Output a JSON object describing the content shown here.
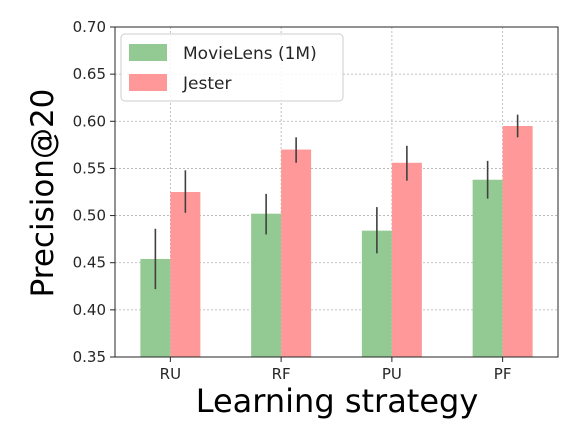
{
  "chart_data": {
    "type": "bar",
    "xlabel": "Learning strategy",
    "ylabel": "Precision@20",
    "categories": [
      "RU",
      "RF",
      "PU",
      "PF"
    ],
    "ylim": [
      0.35,
      0.7
    ],
    "yticks": [
      "0.35",
      "0.40",
      "0.45",
      "0.50",
      "0.55",
      "0.60",
      "0.65",
      "0.70"
    ],
    "grid": true,
    "legend_position": "top-left",
    "series": [
      {
        "name": "MovieLens (1M)",
        "color": "#93c993",
        "values": [
          0.454,
          0.502,
          0.484,
          0.538
        ],
        "err_low": [
          0.422,
          0.48,
          0.46,
          0.518
        ],
        "err_high": [
          0.486,
          0.523,
          0.509,
          0.558
        ]
      },
      {
        "name": "Jester",
        "color": "#ff9898",
        "values": [
          0.525,
          0.57,
          0.556,
          0.595
        ],
        "err_low": [
          0.503,
          0.556,
          0.537,
          0.583
        ],
        "err_high": [
          0.548,
          0.583,
          0.574,
          0.607
        ]
      }
    ]
  }
}
